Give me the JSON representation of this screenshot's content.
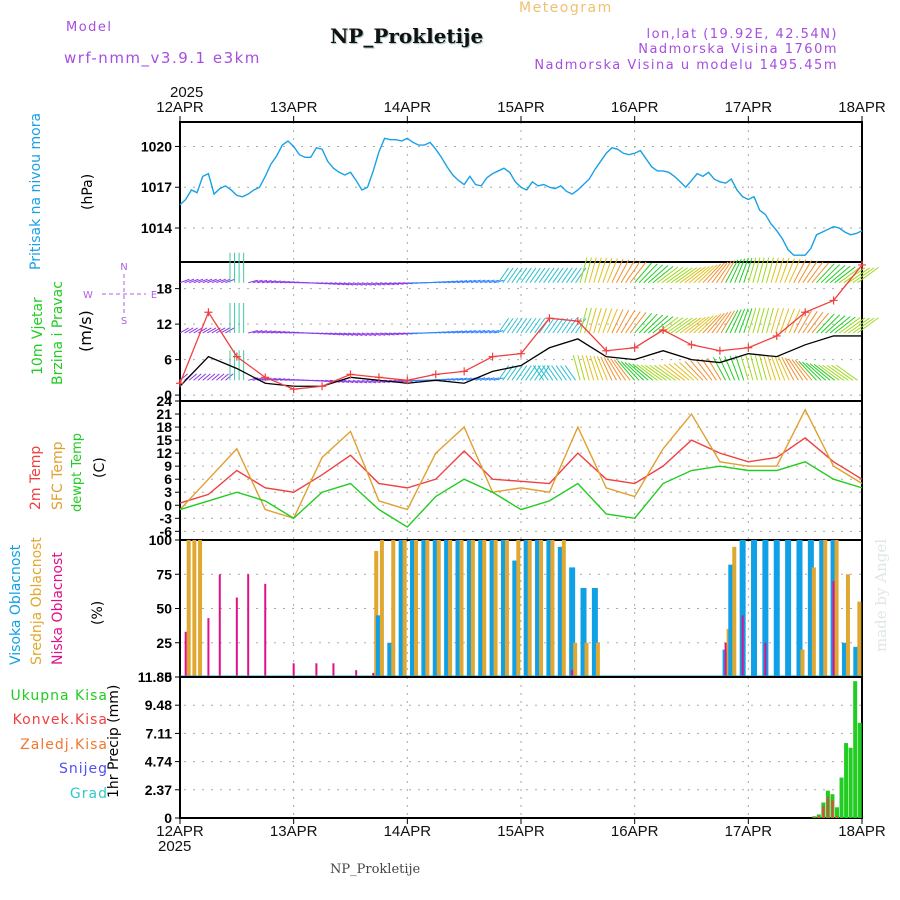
{
  "header": {
    "model_label": "Model",
    "model_name": "wrf-nmm_v3.9.1 e3km",
    "station_title": "NP_Prokletije",
    "chart_kind": "Meteogram",
    "coords": "lon,lat (19.92E, 42.54N)",
    "elevation": "Nadmorska Visina 1760m",
    "model_elevation": "Nadmorska Visina u modelu 1495.45m"
  },
  "footer": {
    "station": "NP_Prokletije",
    "credit": "made by Angel"
  },
  "x_axis": {
    "year": "2025",
    "dates": [
      "12APR",
      "13APR",
      "14APR",
      "15APR",
      "16APR",
      "17APR",
      "18APR"
    ]
  },
  "colors": {
    "pressure": "#1aa0e6",
    "wind_label": "#22cc22",
    "temp2m": "#f04040",
    "sfc": "#e0a030",
    "dewpt": "#22cc22",
    "cloud_high": "#10a0e6",
    "cloud_mid": "#e0a830",
    "cloud_low": "#e0108a",
    "compass": "#b060e0",
    "precip_total": "#22cc22",
    "precip_conv": "#f04040",
    "precip_frz": "#f07830",
    "precip_snow": "#5050f0",
    "precip_hail": "#30c8c8"
  },
  "chart_data": [
    {
      "type": "line",
      "title": "Pritisak na nivou mora",
      "ylabel": "(hPa)",
      "yticks": [
        "1020",
        "1017",
        "1014"
      ],
      "ylim": [
        1011.5,
        1021.8
      ],
      "x_days": [
        0,
        0.05,
        0.1,
        0.15,
        0.2,
        0.25,
        0.3,
        0.35,
        0.4,
        0.45,
        0.5,
        0.55,
        0.6,
        0.65,
        0.7,
        0.75,
        0.8,
        0.85,
        0.9,
        0.95,
        1.0,
        1.05,
        1.1,
        1.15,
        1.2,
        1.25,
        1.3,
        1.35,
        1.4,
        1.45,
        1.5,
        1.55,
        1.6,
        1.65,
        1.7,
        1.75,
        1.8,
        1.85,
        1.9,
        1.95,
        2.0,
        2.05,
        2.1,
        2.15,
        2.2,
        2.25,
        2.3,
        2.35,
        2.4,
        2.45,
        2.5,
        2.55,
        2.6,
        2.65,
        2.7,
        2.75,
        2.8,
        2.85,
        2.9,
        2.95,
        3.0,
        3.05,
        3.1,
        3.15,
        3.2,
        3.25,
        3.3,
        3.35,
        3.4,
        3.45,
        3.5,
        3.55,
        3.6,
        3.65,
        3.7,
        3.75,
        3.8,
        3.85,
        3.9,
        3.95,
        4.0,
        4.05,
        4.1,
        4.15,
        4.2,
        4.25,
        4.3,
        4.35,
        4.4,
        4.45,
        4.5,
        4.55,
        4.6,
        4.65,
        4.7,
        4.75,
        4.8,
        4.85,
        4.9,
        4.95,
        5.0,
        5.05,
        5.1,
        5.15,
        5.2,
        5.25,
        5.3,
        5.35,
        5.4,
        5.45,
        5.5,
        5.55,
        5.6,
        5.65,
        5.7,
        5.75,
        5.8,
        5.85,
        5.9,
        5.95,
        6.0
      ],
      "values": [
        1015.7,
        1016.1,
        1016.8,
        1016.6,
        1017.8,
        1018.0,
        1016.5,
        1016.9,
        1017.1,
        1016.8,
        1016.4,
        1016.3,
        1016.5,
        1016.8,
        1017.0,
        1017.8,
        1018.7,
        1019.3,
        1020.1,
        1020.4,
        1020.0,
        1019.4,
        1019.2,
        1019.2,
        1019.9,
        1019.8,
        1018.9,
        1018.4,
        1018.1,
        1017.9,
        1018.1,
        1017.5,
        1016.8,
        1017.0,
        1018.2,
        1019.6,
        1020.6,
        1020.5,
        1020.5,
        1020.4,
        1020.6,
        1020.3,
        1020.1,
        1020.1,
        1020.3,
        1019.8,
        1019.2,
        1018.5,
        1017.9,
        1017.5,
        1017.2,
        1017.8,
        1017.2,
        1017.1,
        1017.7,
        1018.0,
        1018.2,
        1018.4,
        1018.1,
        1017.4,
        1017.0,
        1016.8,
        1017.4,
        1017.1,
        1017.2,
        1017.0,
        1016.9,
        1017.1,
        1016.7,
        1016.5,
        1016.8,
        1017.2,
        1017.6,
        1018.3,
        1018.9,
        1019.5,
        1019.9,
        1019.8,
        1019.5,
        1019.4,
        1019.5,
        1019.7,
        1019.1,
        1018.5,
        1018.2,
        1018.2,
        1018.1,
        1017.8,
        1017.4,
        1017.0,
        1017.5,
        1018.0,
        1017.8,
        1018.1,
        1017.6,
        1017.4,
        1017.3,
        1017.6,
        1016.8,
        1016.3,
        1016.1,
        1016.3,
        1015.3,
        1015.0,
        1014.3,
        1013.8,
        1013.2,
        1012.4,
        1012.0,
        1012.0,
        1012.0,
        1012.5,
        1013.5,
        1013.7,
        1013.9,
        1014.1,
        1014.0,
        1013.7,
        1013.5,
        1013.6,
        1013.8
      ],
      "xlim_days": [
        0,
        6
      ]
    },
    {
      "type": "line",
      "title": "10m Vjetar Brzina i Pravac",
      "ylabel": "(m/s)",
      "yticks": [
        "18",
        "12",
        "6",
        "0"
      ],
      "ylim": [
        -1,
        22.5
      ],
      "compass": {
        "N": "N",
        "S": "S",
        "W": "W",
        "E": "E"
      },
      "series": [
        {
          "name": "wind speed (black)",
          "x_days": [
            0,
            0.25,
            0.5,
            0.75,
            1.0,
            1.25,
            1.5,
            1.75,
            2.0,
            2.25,
            2.5,
            2.75,
            3.0,
            3.25,
            3.5,
            3.75,
            4.0,
            4.25,
            4.5,
            4.75,
            5.0,
            5.25,
            5.5,
            5.75,
            6.0
          ],
          "values": [
            1.5,
            6.5,
            4.5,
            2.0,
            1.5,
            1.5,
            3.0,
            2.5,
            2.0,
            2.5,
            2.0,
            4.0,
            5.0,
            8.0,
            9.5,
            6.5,
            6.0,
            7.5,
            6.0,
            5.5,
            7.0,
            6.5,
            8.5,
            10,
            10
          ]
        },
        {
          "name": "gust (red +)",
          "x_days": [
            0,
            0.25,
            0.5,
            0.75,
            1.0,
            1.25,
            1.5,
            1.75,
            2.0,
            2.25,
            2.5,
            2.75,
            3.0,
            3.25,
            3.5,
            3.75,
            4.0,
            4.25,
            4.5,
            4.75,
            5.0,
            5.25,
            5.5,
            5.75,
            6.0
          ],
          "values": [
            2.0,
            14.0,
            6.5,
            3.0,
            1.0,
            1.5,
            3.5,
            3.0,
            2.5,
            3.5,
            4.0,
            6.5,
            7.0,
            13.0,
            12.5,
            7.5,
            8.0,
            11.0,
            8.5,
            7.5,
            8.0,
            10.0,
            14.0,
            16.0,
            22.0
          ]
        }
      ],
      "xlim_days": [
        0,
        6
      ]
    },
    {
      "type": "line",
      "title": "2m Temp / SFC Temp / dewpt Temp",
      "ylabel": "(C)",
      "yticks": [
        "24",
        "21",
        "18",
        "15",
        "12",
        "9",
        "6",
        "3",
        "0",
        "-3",
        "-6"
      ],
      "ylim": [
        -8,
        24
      ],
      "x_days": [
        0,
        0.25,
        0.5,
        0.75,
        1.0,
        1.25,
        1.5,
        1.75,
        2.0,
        2.25,
        2.5,
        2.75,
        3.0,
        3.25,
        3.5,
        3.75,
        4.0,
        4.25,
        4.5,
        4.75,
        5.0,
        5.25,
        5.5,
        5.75,
        6.0
      ],
      "series": [
        {
          "name": "2m Temp",
          "values": [
            0.5,
            2.5,
            8,
            4,
            3,
            7,
            11.5,
            5,
            4,
            6,
            12.5,
            6,
            5.5,
            5,
            12,
            6,
            5,
            9,
            15,
            12,
            10,
            11,
            15.5,
            10,
            6
          ]
        },
        {
          "name": "SFC Temp",
          "values": [
            -1,
            6,
            13,
            -1,
            -3,
            11,
            17,
            1,
            -1,
            12,
            18,
            3,
            4,
            3,
            18,
            4,
            2,
            13,
            21,
            10,
            9,
            9,
            22,
            9,
            5
          ]
        },
        {
          "name": "dewpt Temp",
          "values": [
            -1,
            1,
            3,
            1,
            -3,
            3,
            5,
            -1,
            -5,
            2,
            6,
            3,
            -1,
            1,
            5,
            -2,
            -3,
            5,
            8,
            9,
            8,
            8,
            10,
            6,
            4
          ]
        }
      ],
      "xlim_days": [
        0,
        6
      ]
    },
    {
      "type": "bar",
      "title": "Visoka / Srednja / Niska Oblacnost",
      "ylabel": "(%)",
      "yticks": [
        "100",
        "75",
        "50",
        "25",
        "0"
      ],
      "ylim": [
        0,
        100
      ],
      "x_days": [
        0.05,
        0.1,
        0.15,
        0.25,
        0.35,
        0.5,
        0.6,
        0.75,
        0.85,
        1.0,
        1.2,
        1.35,
        1.55,
        1.7,
        1.75,
        1.85,
        1.95,
        2.05,
        2.15,
        2.25,
        2.35,
        2.45,
        2.55,
        2.65,
        2.75,
        2.85,
        2.95,
        3.05,
        3.15,
        3.25,
        3.35,
        3.45,
        3.55,
        3.65,
        4.8,
        4.85,
        4.95,
        5.05,
        5.15,
        5.25,
        5.35,
        5.45,
        5.55,
        5.65,
        5.75,
        5.85,
        5.95
      ],
      "series": [
        {
          "name": "Visoka Oblacnost",
          "values": [
            0,
            0,
            0,
            0,
            0,
            0,
            0,
            0,
            0,
            0,
            0,
            0,
            0,
            0,
            45,
            25,
            100,
            100,
            100,
            100,
            100,
            100,
            100,
            100,
            100,
            100,
            85,
            100,
            100,
            100,
            95,
            80,
            65,
            65,
            20,
            82,
            100,
            100,
            100,
            100,
            100,
            100,
            100,
            100,
            100,
            25,
            22
          ]
        },
        {
          "name": "Srednja Oblacnost",
          "values": [
            100,
            100,
            100,
            0,
            0,
            0,
            0,
            0,
            0,
            0,
            0,
            0,
            0,
            92,
            100,
            100,
            100,
            100,
            100,
            100,
            100,
            100,
            100,
            100,
            100,
            100,
            100,
            100,
            100,
            100,
            100,
            25,
            25,
            25,
            35,
            95,
            0,
            0,
            0,
            0,
            0,
            20,
            80,
            100,
            100,
            75,
            55
          ]
        },
        {
          "name": "Niska Oblacnost",
          "values": [
            33,
            0,
            0,
            43,
            75,
            58,
            75,
            68,
            0,
            10,
            10,
            10,
            5,
            3,
            0,
            0,
            0,
            0,
            0,
            0,
            0,
            0,
            0,
            0,
            0,
            0,
            0,
            0,
            0,
            0,
            0,
            5,
            0,
            0,
            25,
            0,
            45,
            0,
            25,
            0,
            0,
            0,
            0,
            0,
            70,
            0,
            0
          ]
        }
      ],
      "xlim_days": [
        0,
        6
      ]
    },
    {
      "type": "bar",
      "title": "1hr Precip",
      "ylabel": "1hr Precip (mm)",
      "yticks": [
        "11.85",
        "9.48",
        "7.11",
        "4.74",
        "2.37",
        "0"
      ],
      "ylim": [
        0,
        11.85
      ],
      "legend": [
        "Ukupna Kisa",
        "Konvek.Kisa",
        "Zaledj.Kisa",
        "Snijeg",
        "Grad"
      ],
      "x_days": [
        5.58,
        5.62,
        5.66,
        5.7,
        5.74,
        5.78,
        5.82,
        5.86,
        5.9,
        5.94,
        5.98
      ],
      "series": [
        {
          "name": "Ukupna Kisa",
          "values": [
            0.15,
            0.3,
            1.3,
            2.3,
            2.0,
            0.9,
            3.4,
            6.3,
            5.9,
            11.5,
            8.0
          ]
        },
        {
          "name": "Konvek.Kisa",
          "values": [
            0.1,
            0.2,
            1.0,
            1.8,
            1.5,
            0.2,
            0,
            0,
            0,
            0,
            0
          ]
        }
      ],
      "xlim_days": [
        0,
        6
      ]
    }
  ]
}
